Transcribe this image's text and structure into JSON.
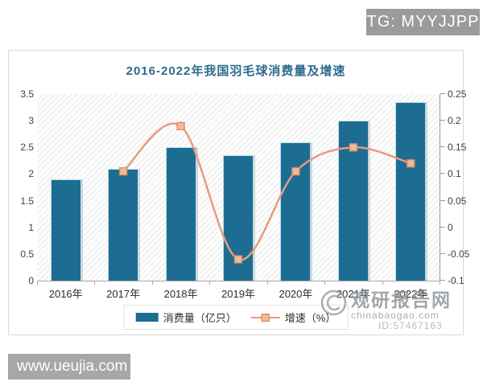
{
  "badge": {
    "text": "TG: MYYJJPP"
  },
  "footer_badge": {
    "text": "www.ueujia.com"
  },
  "watermark": {
    "brand": "观研报告网",
    "domain": "chinabaogao.com",
    "id_text": "ID:57467163"
  },
  "chart_data": {
    "type": "bar",
    "title": "2016-2022年我国羽毛球消费量及增速",
    "categories": [
      "2016年",
      "2017年",
      "2018年",
      "2019年",
      "2020年",
      "2021年",
      "2022年"
    ],
    "series": [
      {
        "name": "消费量（亿只）",
        "type": "bar",
        "axis": "left",
        "color": "#1d6d93",
        "values": [
          1.9,
          2.1,
          2.5,
          2.35,
          2.6,
          3.0,
          3.35
        ]
      },
      {
        "name": "增速（%）",
        "type": "line",
        "axis": "right",
        "color": "#e89a7e",
        "marker_fill": "#edbb97",
        "marker_border": "#df8a64",
        "values": [
          null,
          0.105,
          0.19,
          -0.06,
          0.105,
          0.15,
          0.12
        ]
      }
    ],
    "left_axis": {
      "min": 0,
      "max": 3.5,
      "ticks": [
        "0",
        "0.5",
        "1",
        "1.5",
        "2",
        "2.5",
        "3",
        "3.5"
      ]
    },
    "right_axis": {
      "min": -0.1,
      "max": 0.25,
      "ticks": [
        "-0.1",
        "-0.05",
        "0",
        "0.05",
        "0.1",
        "0.15",
        "0.2",
        "0.25"
      ]
    },
    "legend_position": "bottom",
    "grid": false
  }
}
